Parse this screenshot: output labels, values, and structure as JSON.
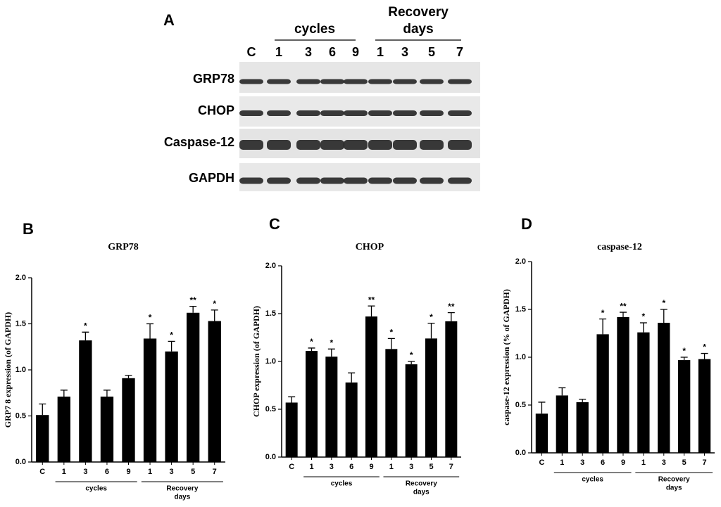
{
  "blot": {
    "panel_label": "A",
    "groups": [
      [
        "cycles"
      ],
      [
        "Recovery",
        "days"
      ]
    ],
    "lane_labels": [
      "C",
      "1",
      "3",
      "6",
      "9",
      "1",
      "3",
      "5",
      "7"
    ],
    "row_labels": [
      "GRP78",
      "CHOP",
      "Caspase-12",
      "GAPDH"
    ]
  },
  "chart_data": [
    {
      "type": "bar",
      "panel_label": "B",
      "title": "GRP78",
      "y_label": "GRP7 8 expression (of GAPDH)",
      "categories": [
        "C",
        "1",
        "3",
        "6",
        "9",
        "1",
        "3",
        "5",
        "7"
      ],
      "values": [
        0.51,
        0.71,
        1.32,
        0.71,
        0.91,
        1.34,
        1.2,
        1.62,
        1.53
      ],
      "errors": [
        0.12,
        0.07,
        0.09,
        0.07,
        0.03,
        0.16,
        0.11,
        0.07,
        0.12
      ],
      "annotations": [
        null,
        null,
        "*",
        null,
        null,
        "*",
        "*",
        "**",
        "*"
      ],
      "groups": [
        [
          "cycles"
        ],
        [
          "Recovery",
          "days"
        ]
      ],
      "color": "#000000",
      "ylim": [
        0,
        2
      ],
      "yticks": [
        {
          "value": 0,
          "label": "0.0"
        },
        {
          "value": 0.5,
          "label": "0.5"
        },
        {
          "value": 1,
          "label": "1.0"
        },
        {
          "value": 1.5,
          "label": "1.5"
        },
        {
          "value": 2,
          "label": "2.0"
        }
      ]
    },
    {
      "type": "bar",
      "panel_label": "C",
      "title": "CHOP",
      "y_label": "CHOP expression (of GAPDH)",
      "categories": [
        "C",
        "1",
        "3",
        "6",
        "9",
        "1",
        "3",
        "5",
        "7"
      ],
      "values": [
        0.57,
        1.11,
        1.05,
        0.78,
        1.47,
        1.13,
        0.97,
        1.24,
        1.42
      ],
      "errors": [
        0.06,
        0.03,
        0.08,
        0.1,
        0.11,
        0.11,
        0.03,
        0.16,
        0.09
      ],
      "annotations": [
        null,
        "*",
        "*",
        null,
        "**",
        "*",
        "*",
        "*",
        "**"
      ],
      "groups": [
        [
          "cycles"
        ],
        [
          "Recovery",
          "days"
        ]
      ],
      "color": "#000000",
      "ylim": [
        0,
        2
      ],
      "yticks": [
        {
          "value": 0,
          "label": "0.0"
        },
        {
          "value": 0.5,
          "label": "0.5"
        },
        {
          "value": 1,
          "label": "1.0"
        },
        {
          "value": 1.5,
          "label": "1.5"
        },
        {
          "value": 2,
          "label": "2.0"
        }
      ]
    },
    {
      "type": "bar",
      "panel_label": "D",
      "title": "caspase-12",
      "y_label": "caspase-12 expression (% of GAPDH)",
      "categories": [
        "C",
        "1",
        "3",
        "6",
        "9",
        "1",
        "3",
        "5",
        "7"
      ],
      "values": [
        0.41,
        0.6,
        0.53,
        1.24,
        1.42,
        1.26,
        1.36,
        0.97,
        0.98
      ],
      "errors": [
        0.12,
        0.08,
        0.03,
        0.16,
        0.05,
        0.1,
        0.14,
        0.03,
        0.06
      ],
      "annotations": [
        null,
        null,
        null,
        "*",
        "**",
        "*",
        "*",
        "*",
        "*"
      ],
      "groups": [
        [
          "cycles"
        ],
        [
          "Recovery",
          "days"
        ]
      ],
      "color": "#000000",
      "ylim": [
        0,
        2
      ],
      "yticks": [
        {
          "value": 0,
          "label": "0.0"
        },
        {
          "value": 0.5,
          "label": "0.5"
        },
        {
          "value": 1,
          "label": "1.0"
        },
        {
          "value": 1.5,
          "label": "1.5"
        },
        {
          "value": 2,
          "label": "2.0"
        }
      ]
    }
  ]
}
